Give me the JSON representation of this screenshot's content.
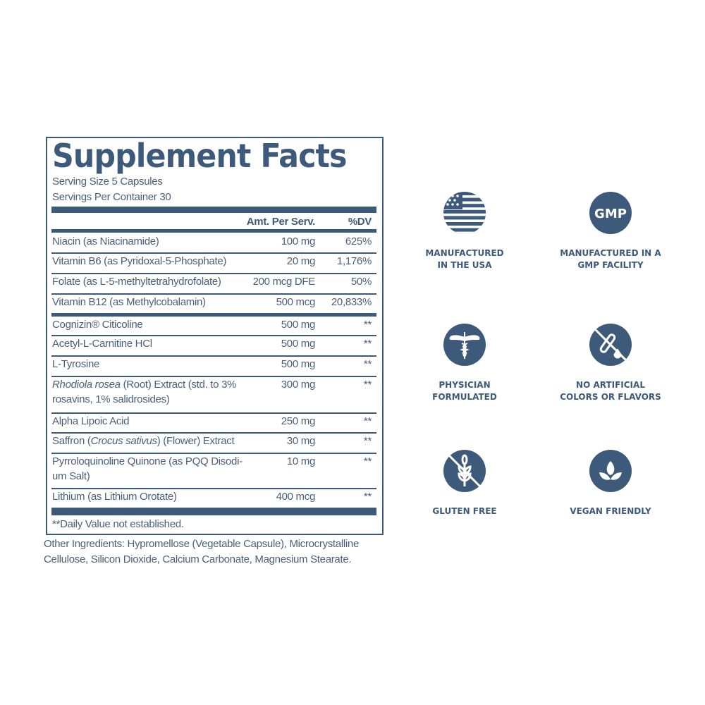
{
  "facts": {
    "title": "Supplement Facts",
    "serving_size": "Serving Size 5 Capsules",
    "servings_per_container": "Servings Per Container 30",
    "col_amount": "Amt. Per Serv.",
    "col_dv": "%DV",
    "rows": [
      {
        "name": "Niacin (as Niacinamide)",
        "amount": "100 mg",
        "dv": "625%"
      },
      {
        "name": "Vitamin B6 (as Pyridoxal-5-Phosphate)",
        "amount": "20 mg",
        "dv": "1,176%"
      },
      {
        "name": "Folate (as L-5-methyltetrahydrofolate)",
        "amount": "200 mcg DFE",
        "dv": "50%"
      },
      {
        "name": "Vitamin B12 (as Methylcobalamin)",
        "amount": "500 mcg",
        "dv": "20,833%"
      },
      {
        "name": "Cognizin® Citicoline",
        "amount": "500 mg",
        "dv": "**"
      },
      {
        "name": "Acetyl-L-Carnitine HCl",
        "amount": "500 mg",
        "dv": "**"
      },
      {
        "name": "L-Tyrosine",
        "amount": "500 mg",
        "dv": "**"
      },
      {
        "name_italic": "Rhodiola rosea",
        "name": " (Root) Extract (std. to 3% rosavins, 1% salidrosides)",
        "amount": "300 mg",
        "dv": "**"
      },
      {
        "name": "Alpha Lipoic Acid",
        "amount": "250 mg",
        "dv": "**"
      },
      {
        "name_pre": "Saffron (",
        "name_italic": "Crocus sativus",
        "name": ") (Flower) Extract",
        "amount": "30 mg",
        "dv": "**"
      },
      {
        "name": "Pyrroloquinoline Quinone (as PQQ Disodi-um Salt)",
        "amount": "10 mg",
        "dv": "**"
      },
      {
        "name": "Lithium (as Lithium Orotate)",
        "amount": "400 mcg",
        "dv": "**"
      }
    ],
    "footnote": "**Daily Value not established.",
    "other_ingredients": "Other Ingredients: Hypromellose (Vegetable Capsule), Microcrystalline Cellulose, Silicon Dioxide, Calcium Carbonate, Magnesium Stearate."
  },
  "badges": [
    {
      "icon": "usa-flag-icon",
      "label1": "MANUFACTURED",
      "label2": "IN THE USA"
    },
    {
      "icon": "gmp-icon",
      "icon_text": "GMP",
      "label1": "MANUFACTURED IN A",
      "label2": "GMP FACILITY"
    },
    {
      "icon": "caduceus-icon",
      "label1": "PHYSICIAN",
      "label2": "FORMULATED"
    },
    {
      "icon": "no-artificial-icon",
      "label1": "NO ARTIFICIAL",
      "label2": "COLORS OR FLAVORS"
    },
    {
      "icon": "gluten-free-icon",
      "label1": "GLUTEN FREE",
      "label2": ""
    },
    {
      "icon": "vegan-leaf-icon",
      "label1": "VEGAN FRIENDLY",
      "label2": ""
    }
  ],
  "colors": {
    "primary": "#3e5a7a",
    "text": "#4a5f78"
  }
}
